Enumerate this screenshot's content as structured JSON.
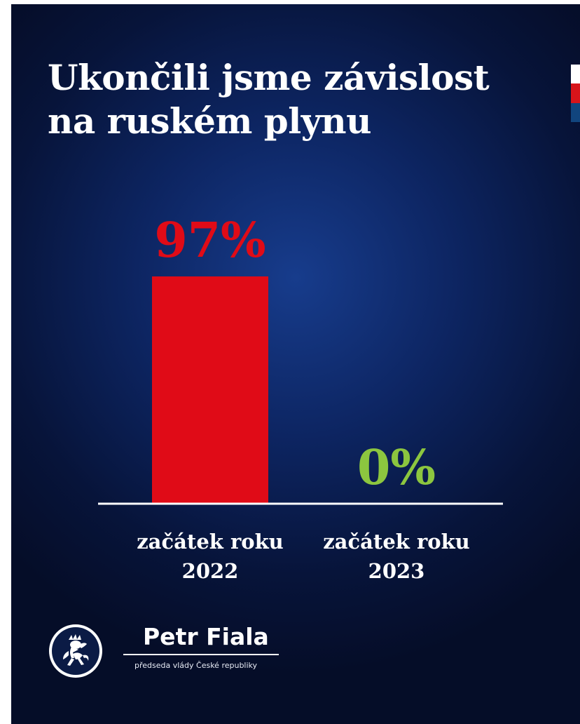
{
  "title": {
    "line1": "Ukončili jsme závislost",
    "line2": "na ruském plynu"
  },
  "colors": {
    "background": "#0d2562",
    "bar_2022": "#e00b17",
    "label_2022": "#e00b17",
    "label_2023": "#8cc63f",
    "text": "#ffffff"
  },
  "chart_data": {
    "type": "bar",
    "title": "Ukončili jsme závislost na ruském plynu",
    "categories": [
      [
        "začátek roku",
        "2022"
      ],
      [
        "začátek roku",
        "2023"
      ]
    ],
    "values": [
      97,
      0
    ],
    "value_labels": [
      "97%",
      "0%"
    ],
    "ylim": [
      0,
      100
    ],
    "grid": false,
    "legend": "none"
  },
  "footer": {
    "emblem_icon": "czech-lion-emblem-icon",
    "name": "Petr Fiala",
    "role": "předseda vlády České republiky"
  }
}
